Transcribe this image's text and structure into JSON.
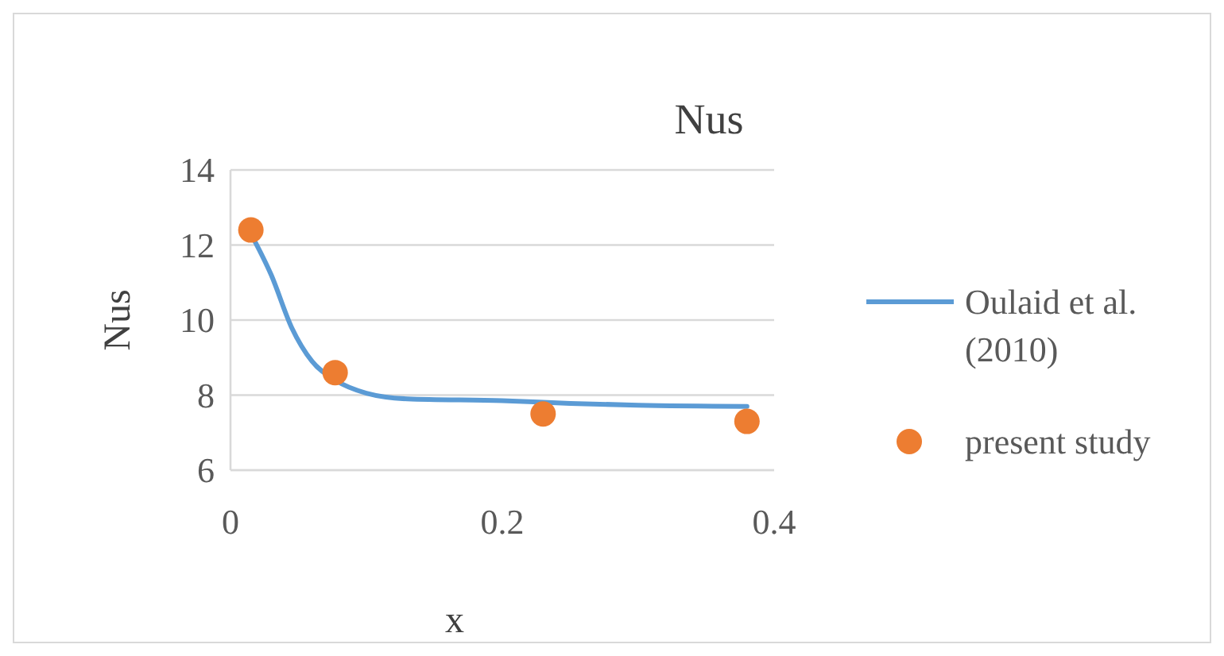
{
  "chart_data": {
    "type": "line",
    "title": "Nus",
    "xlabel": "x",
    "ylabel": "Nus",
    "xlim": [
      0,
      0.4
    ],
    "xticks": [
      0,
      0.2,
      0.4
    ],
    "ylim": [
      6,
      14
    ],
    "yticks": [
      6,
      8,
      10,
      12,
      14
    ],
    "grid": "y",
    "legend": "right",
    "series": [
      {
        "name": "Oulaid et al. (2010)",
        "color": "#5b9bd5",
        "marker": "none",
        "x": [
          0.015,
          0.03,
          0.045,
          0.06,
          0.077,
          0.1,
          0.13,
          0.2,
          0.25,
          0.3,
          0.38
        ],
        "values": [
          12.3,
          11.2,
          9.8,
          8.9,
          8.4,
          8.05,
          7.9,
          7.85,
          7.78,
          7.73,
          7.7
        ]
      },
      {
        "name": "present study",
        "type": "scatter",
        "color": "#ed7d31",
        "marker": "circle",
        "x": [
          0.015,
          0.077,
          0.23,
          0.38
        ],
        "values": [
          12.4,
          8.6,
          7.5,
          7.3
        ]
      }
    ]
  }
}
